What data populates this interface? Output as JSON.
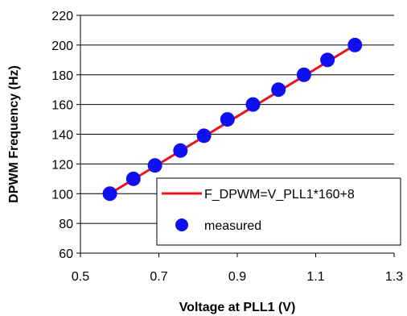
{
  "chart_data": {
    "type": "scatter",
    "xlabel": "Voltage at PLL1 (V)",
    "ylabel": "DPWM Frequency (Hz)",
    "xlim": [
      0.5,
      1.3
    ],
    "ylim": [
      60,
      220
    ],
    "x_ticks": [
      "0.5",
      "0.7",
      "0.9",
      "1.1",
      "1.3"
    ],
    "y_ticks": [
      "60",
      "80",
      "100",
      "120",
      "140",
      "160",
      "180",
      "200",
      "220"
    ],
    "grid": "horizontal",
    "legend_position": "bottom-right",
    "series": [
      {
        "name": "F_DPWM=V_PLL1*160+8",
        "kind": "line",
        "color": "#e8141c",
        "x": [
          0.575,
          1.2
        ],
        "y": [
          100,
          200
        ]
      },
      {
        "name": "measured",
        "kind": "markers",
        "color": "#0f10f0",
        "x": [
          0.575,
          0.635,
          0.69,
          0.755,
          0.815,
          0.875,
          0.94,
          1.005,
          1.07,
          1.13,
          1.2
        ],
        "y": [
          100,
          110,
          119,
          129,
          139,
          150,
          160,
          170,
          180,
          190,
          200
        ]
      }
    ]
  }
}
